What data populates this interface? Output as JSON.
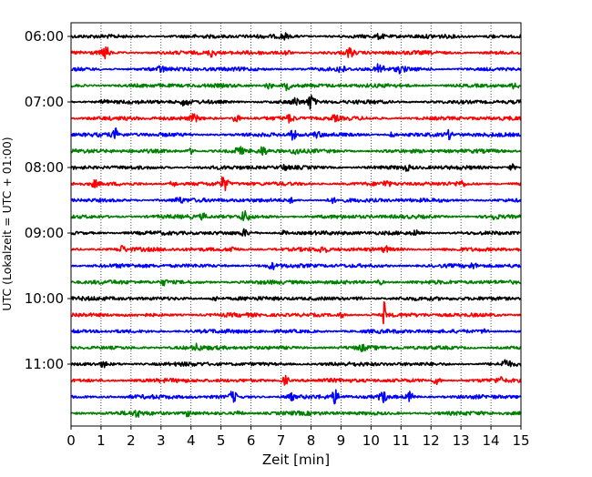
{
  "chart_data": {
    "type": "line",
    "title": "",
    "xlabel": "Zeit  [min]",
    "ylabel": "UTC (Lokalzeit = UTC + 01:00)",
    "xlim": [
      0,
      15
    ],
    "x_ticks": [
      "0",
      "1",
      "2",
      "3",
      "4",
      "5",
      "6",
      "7",
      "8",
      "9",
      "10",
      "11",
      "12",
      "13",
      "14",
      "15"
    ],
    "y_tick_labels": [
      "06:00",
      "07:00",
      "08:00",
      "09:00",
      "10:00",
      "11:00"
    ],
    "y_tick_trace_index": [
      0,
      4,
      8,
      12,
      16,
      20
    ],
    "grid": "vertical dotted lines at each minute",
    "legend": "none",
    "trace_interval_minutes": 15,
    "trace_colors": [
      "#000000",
      "#ff0000",
      "#0000ff",
      "#008000"
    ],
    "traces": [
      {
        "start": "06:00",
        "events": [
          {
            "t": 7.1,
            "amp": 0.35
          },
          {
            "t": 10.3,
            "amp": 0.3
          },
          {
            "t": 14.0,
            "amp": 0.25
          }
        ]
      },
      {
        "start": "06:15",
        "events": [
          {
            "t": 1.15,
            "amp": 0.8
          },
          {
            "t": 4.7,
            "amp": 0.5
          },
          {
            "t": 9.3,
            "amp": 0.6
          },
          {
            "t": 7.2,
            "amp": 0.35
          }
        ]
      },
      {
        "start": "06:30",
        "events": [
          {
            "t": 3.0,
            "amp": 0.35
          },
          {
            "t": 9.0,
            "amp": 0.5
          },
          {
            "t": 10.3,
            "amp": 0.8
          },
          {
            "t": 11.0,
            "amp": 0.4
          }
        ]
      },
      {
        "start": "06:45",
        "events": [
          {
            "t": 6.6,
            "amp": 0.45
          },
          {
            "t": 7.2,
            "amp": 0.55
          },
          {
            "t": 14.8,
            "amp": 0.35
          }
        ]
      },
      {
        "start": "07:00",
        "events": [
          {
            "t": 1.1,
            "amp": 0.3
          },
          {
            "t": 3.8,
            "amp": 0.45
          },
          {
            "t": 8.0,
            "amp": 0.9
          },
          {
            "t": 7.5,
            "amp": 0.45
          }
        ]
      },
      {
        "start": "07:15",
        "events": [
          {
            "t": 4.1,
            "amp": 0.45
          },
          {
            "t": 5.5,
            "amp": 0.6
          },
          {
            "t": 7.3,
            "amp": 0.45
          },
          {
            "t": 8.8,
            "amp": 0.3
          }
        ]
      },
      {
        "start": "07:30",
        "events": [
          {
            "t": 1.5,
            "amp": 0.7
          },
          {
            "t": 7.4,
            "amp": 0.55
          },
          {
            "t": 8.2,
            "amp": 0.3
          },
          {
            "t": 10.7,
            "amp": 0.3
          },
          {
            "t": 12.6,
            "amp": 0.5
          }
        ]
      },
      {
        "start": "07:45",
        "events": [
          {
            "t": 4.0,
            "amp": 0.35
          },
          {
            "t": 5.6,
            "amp": 0.5
          },
          {
            "t": 6.4,
            "amp": 0.55
          },
          {
            "t": 7.5,
            "amp": 0.45
          }
        ]
      },
      {
        "start": "08:00",
        "events": [
          {
            "t": 7.1,
            "amp": 0.3
          },
          {
            "t": 11.2,
            "amp": 0.3
          },
          {
            "t": 14.7,
            "amp": 0.4
          }
        ]
      },
      {
        "start": "08:15",
        "events": [
          {
            "t": 5.1,
            "amp": 0.9
          },
          {
            "t": 0.8,
            "amp": 0.4
          },
          {
            "t": 3.4,
            "amp": 0.35
          },
          {
            "t": 10.5,
            "amp": 0.35
          },
          {
            "t": 13.0,
            "amp": 0.4
          }
        ]
      },
      {
        "start": "08:30",
        "events": [
          {
            "t": 3.6,
            "amp": 0.35
          },
          {
            "t": 7.3,
            "amp": 0.3
          },
          {
            "t": 8.7,
            "amp": 0.3
          }
        ]
      },
      {
        "start": "08:45",
        "events": [
          {
            "t": 4.4,
            "amp": 0.3
          },
          {
            "t": 5.8,
            "amp": 0.7
          },
          {
            "t": 14.1,
            "amp": 0.3
          }
        ]
      },
      {
        "start": "09:00",
        "events": [
          {
            "t": 5.8,
            "amp": 0.4
          },
          {
            "t": 7.1,
            "amp": 0.3
          },
          {
            "t": 11.5,
            "amp": 0.3
          }
        ]
      },
      {
        "start": "09:15",
        "events": [
          {
            "t": 1.7,
            "amp": 0.4
          },
          {
            "t": 5.4,
            "amp": 0.35
          },
          {
            "t": 8.4,
            "amp": 0.4
          },
          {
            "t": 10.5,
            "amp": 0.3
          }
        ]
      },
      {
        "start": "09:30",
        "events": [
          {
            "t": 6.7,
            "amp": 0.35
          },
          {
            "t": 13.4,
            "amp": 0.3
          }
        ]
      },
      {
        "start": "09:45",
        "events": [
          {
            "t": 3.1,
            "amp": 0.3
          },
          {
            "t": 10.3,
            "amp": 0.3
          }
        ]
      },
      {
        "start": "10:00",
        "events": [
          {
            "t": 4.8,
            "amp": 0.3
          },
          {
            "t": 9.6,
            "amp": 0.35
          }
        ]
      },
      {
        "start": "10:15",
        "events": [
          {
            "t": 10.45,
            "amp": 2.2
          },
          {
            "t": 9.0,
            "amp": 0.3
          }
        ]
      },
      {
        "start": "10:30",
        "events": [
          {
            "t": 13.8,
            "amp": 0.3
          }
        ]
      },
      {
        "start": "10:45",
        "events": [
          {
            "t": 4.2,
            "amp": 0.35
          },
          {
            "t": 9.7,
            "amp": 0.3
          }
        ]
      },
      {
        "start": "11:00",
        "events": [
          {
            "t": 1.1,
            "amp": 0.3
          },
          {
            "t": 14.5,
            "amp": 0.6
          }
        ]
      },
      {
        "start": "11:15",
        "events": [
          {
            "t": 7.15,
            "amp": 0.6
          },
          {
            "t": 12.2,
            "amp": 0.45
          },
          {
            "t": 14.3,
            "amp": 0.3
          }
        ]
      },
      {
        "start": "11:30",
        "events": [
          {
            "t": 5.4,
            "amp": 0.7
          },
          {
            "t": 7.3,
            "amp": 0.5
          },
          {
            "t": 8.8,
            "amp": 0.8
          },
          {
            "t": 10.4,
            "amp": 0.7
          },
          {
            "t": 11.3,
            "amp": 0.6
          }
        ]
      },
      {
        "start": "11:45",
        "events": [
          {
            "t": 2.2,
            "amp": 0.3
          },
          {
            "t": 3.9,
            "amp": 0.35
          },
          {
            "t": 5.6,
            "amp": 0.3
          }
        ]
      }
    ]
  }
}
